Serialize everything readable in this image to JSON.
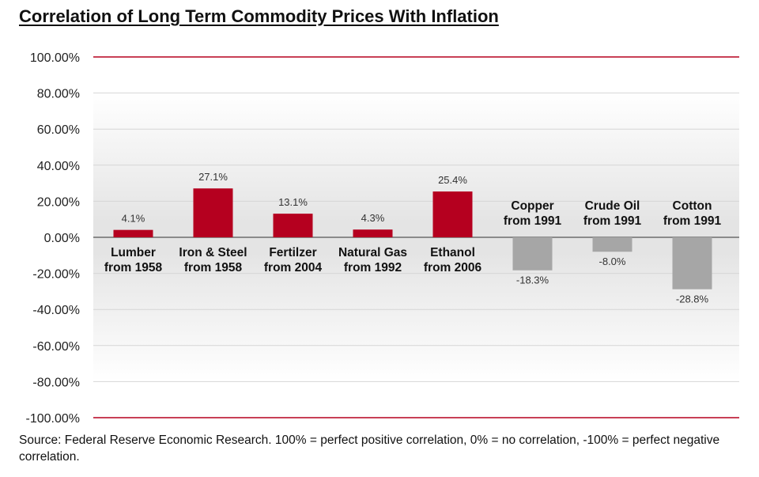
{
  "title": "Correlation of Long Term Commodity Prices With Inflation",
  "source": "Source: Federal Reserve Economic Research. 100% = perfect positive correlation, 0% = no correlation, -100% = perfect negative correlation.",
  "chart_data": {
    "type": "bar",
    "title": "Correlation of Long Term Commodity Prices With Inflation",
    "xlabel": "",
    "ylabel": "",
    "ylim": [
      -100,
      100
    ],
    "y_ticks": [
      "100.00%",
      "80.00%",
      "60.00%",
      "40.00%",
      "20.00%",
      "0.00%",
      "-20.00%",
      "-40.00%",
      "-60.00%",
      "-80.00%",
      "-100.00%"
    ],
    "y_tick_values": [
      100,
      80,
      60,
      40,
      20,
      0,
      -20,
      -40,
      -60,
      -80,
      -100
    ],
    "grid": true,
    "colors": {
      "positive": "#b5001f",
      "negative": "#a6a6a6",
      "limit_line": "#b5001f"
    },
    "categories": [
      [
        "Lumber",
        "from 1958"
      ],
      [
        "Iron & Steel",
        "from 1958"
      ],
      [
        "Fertilzer",
        "from 2004"
      ],
      [
        "Natural Gas",
        "from 1992"
      ],
      [
        "Ethanol",
        "from 2006"
      ],
      [
        "Copper",
        "from 1991"
      ],
      [
        "Crude Oil",
        "from 1991"
      ],
      [
        "Cotton",
        "from 1991"
      ]
    ],
    "values": [
      4.1,
      27.1,
      13.1,
      4.3,
      25.4,
      -18.3,
      -8.0,
      -28.8
    ],
    "value_labels": [
      "4.1%",
      "27.1%",
      "13.1%",
      "4.3%",
      "25.4%",
      "-18.3%",
      "-8.0%",
      "-28.8%"
    ]
  }
}
